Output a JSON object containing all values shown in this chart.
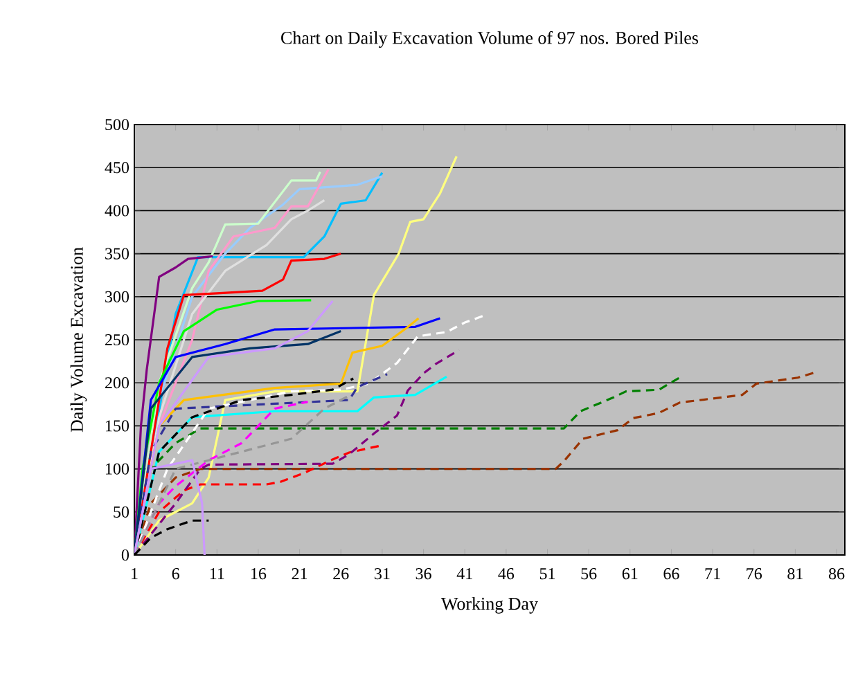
{
  "chart_data": {
    "type": "line",
    "title": "Chart on Daily Excavation Volume of 97 nos. Bored Piles",
    "xlabel": "Working Day",
    "ylabel": "Daily Volume Excavation",
    "xlim": [
      1,
      87
    ],
    "xticks": [
      1,
      6,
      11,
      16,
      21,
      26,
      31,
      36,
      41,
      46,
      51,
      56,
      61,
      66,
      71,
      76,
      81,
      86
    ],
    "ylim": [
      0,
      500
    ],
    "yticks": [
      0,
      50,
      100,
      150,
      200,
      250,
      300,
      350,
      400,
      450,
      500
    ],
    "grid": "y",
    "marker": "none",
    "line_style": "solid",
    "series": [
      {
        "color": "#ffff80",
        "x": [
          1,
          4,
          8,
          10,
          12,
          18,
          28,
          30,
          33,
          34.4,
          36,
          38,
          40
        ],
        "values": [
          0,
          40,
          60,
          90,
          180,
          190,
          190,
          302,
          350,
          387,
          390,
          420,
          463
        ]
      },
      {
        "color": "#00bfff",
        "x": [
          1,
          6,
          8.7,
          21.5,
          24,
          26,
          29,
          31
        ],
        "values": [
          0,
          280,
          346,
          346,
          370,
          408,
          412,
          444
        ]
      },
      {
        "color": "#99ccff",
        "x": [
          1,
          4,
          8,
          12,
          15,
          19,
          21,
          28,
          31
        ],
        "values": [
          0,
          180,
          300,
          350,
          380,
          407,
          425,
          430,
          440
        ]
      },
      {
        "color": "#ccffcc",
        "x": [
          1,
          4,
          8,
          10,
          12,
          16,
          18,
          20,
          23,
          23.5
        ],
        "values": [
          0,
          200,
          310,
          340,
          384,
          385,
          410,
          435,
          435,
          445
        ]
      },
      {
        "color": "#ff99cc",
        "x": [
          1,
          4,
          8,
          10,
          13,
          18,
          20,
          22,
          24.5
        ],
        "values": [
          0,
          150,
          250,
          330,
          370,
          380,
          405,
          405,
          448
        ]
      },
      {
        "color": "#e0e0e0",
        "x": [
          1,
          4,
          8,
          12,
          17,
          20,
          22,
          24
        ],
        "values": [
          0,
          160,
          280,
          330,
          360,
          390,
          400,
          412
        ]
      },
      {
        "color": "#800080",
        "x": [
          1,
          1.8,
          2.5,
          4,
          6,
          7.5,
          10.5
        ],
        "values": [
          0,
          150,
          215,
          323,
          334,
          344,
          347
        ]
      },
      {
        "color": "#ff0000",
        "x": [
          1,
          3,
          5,
          7,
          11,
          16.5,
          19,
          20,
          24,
          26
        ],
        "values": [
          0,
          120,
          240,
          302,
          304,
          307,
          320,
          342,
          344,
          350
        ]
      },
      {
        "color": "#00ff00",
        "x": [
          1,
          2,
          4,
          7,
          11,
          16,
          22.4
        ],
        "values": [
          0,
          100,
          200,
          260,
          285,
          295,
          296
        ]
      },
      {
        "color": "#0000ff",
        "x": [
          1,
          3,
          6,
          12,
          18,
          35,
          38
        ],
        "values": [
          0,
          180,
          230,
          245,
          262,
          265,
          275
        ]
      },
      {
        "color": "#00ffff",
        "x": [
          1,
          4,
          8,
          18,
          28,
          30,
          35,
          38.8
        ],
        "values": [
          0,
          120,
          160,
          167,
          167,
          183,
          186,
          207
        ]
      },
      {
        "color": "#008000",
        "line_style": "dashed",
        "x": [
          1,
          3,
          6,
          9,
          53,
          55,
          59,
          60.5,
          64.5,
          67
        ],
        "values": [
          0,
          100,
          130,
          147,
          147,
          167,
          183,
          190,
          192,
          206
        ]
      },
      {
        "color": "#993300",
        "line_style": "dashed",
        "x": [
          1,
          3,
          6,
          9,
          52,
          53,
          55.3,
          59.5,
          61.4,
          64.5,
          67,
          74.6,
          76.3,
          81.3,
          83.4
        ],
        "values": [
          0,
          60,
          90,
          100,
          100,
          109,
          135,
          145,
          159,
          165,
          177,
          186,
          199,
          206,
          212
        ]
      },
      {
        "color": "#ff0000",
        "line_style": "dashed",
        "x": [
          1,
          4,
          7,
          9,
          17,
          18.7,
          21.5,
          25,
          27,
          30.8
        ],
        "values": [
          0,
          50,
          75,
          82,
          82,
          85,
          95,
          111,
          119,
          127
        ]
      },
      {
        "color": "#800080",
        "line_style": "dashed",
        "x": [
          1,
          6,
          9,
          10,
          25,
          27,
          30,
          32.8,
          34.1,
          36,
          37.5,
          40.3
        ],
        "values": [
          0,
          60,
          100,
          105,
          106,
          117,
          141,
          162,
          191,
          211,
          222,
          238
        ]
      },
      {
        "color": "#ffffff",
        "line_style": "dashed",
        "x": [
          1,
          5,
          10,
          20,
          26,
          29.4,
          32.8,
          35.3,
          38.8,
          41,
          43.3
        ],
        "values": [
          0,
          100,
          170,
          190,
          192,
          199,
          223,
          254,
          259,
          270,
          278
        ]
      },
      {
        "color": "#ffc000",
        "x": [
          1,
          4,
          7,
          18,
          26,
          27.4,
          31,
          34,
          35.4
        ],
        "values": [
          0,
          150,
          180,
          194,
          199,
          235,
          243,
          264,
          275
        ]
      },
      {
        "color": "#333399",
        "line_style": "dashed",
        "x": [
          1,
          3,
          6,
          27,
          28,
          31.6
        ],
        "values": [
          0,
          120,
          170,
          180,
          195,
          210
        ]
      },
      {
        "color": "#000000",
        "line_style": "dashed",
        "x": [
          1,
          4,
          8,
          14,
          20,
          25,
          27.5
        ],
        "values": [
          0,
          120,
          160,
          180,
          186,
          192,
          205
        ]
      },
      {
        "color": "#003366",
        "x": [
          1,
          3,
          8,
          15,
          22,
          26
        ],
        "values": [
          0,
          170,
          230,
          240,
          245,
          260
        ]
      },
      {
        "color": "#cc99ff",
        "x": [
          1,
          4,
          10,
          18,
          22,
          25
        ],
        "values": [
          0,
          150,
          230,
          240,
          260,
          295
        ]
      },
      {
        "color": "#ff00ff",
        "line_style": "dashed",
        "x": [
          1,
          4,
          6,
          10,
          14,
          18,
          22
        ],
        "values": [
          0,
          60,
          80,
          110,
          130,
          170,
          178
        ]
      },
      {
        "color": "#969696",
        "line_style": "dashed",
        "x": [
          1,
          6,
          14,
          20,
          24,
          27
        ],
        "values": [
          0,
          100,
          120,
          135,
          170,
          185
        ]
      },
      {
        "color": "#cc99ff",
        "x": [
          1,
          3,
          8,
          9.2,
          9.5
        ],
        "values": [
          0,
          100,
          110,
          60,
          0
        ]
      },
      {
        "color": "#000000",
        "line_style": "dashed",
        "x": [
          1,
          3,
          5,
          8,
          10
        ],
        "values": [
          0,
          20,
          30,
          40,
          40
        ]
      }
    ]
  }
}
